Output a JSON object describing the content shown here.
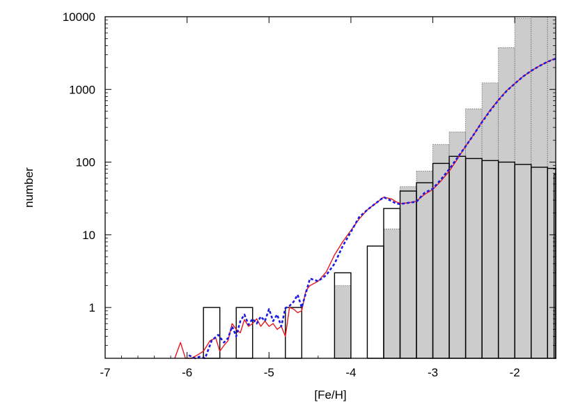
{
  "chart_data": {
    "type": "bar",
    "xlabel": "[Fe/H]",
    "ylabel": "number",
    "xlim": [
      -7,
      -1.5
    ],
    "ylim": [
      0.2,
      10000
    ],
    "y_scale": "log",
    "grid": false,
    "x_ticks": [
      -7,
      -6,
      -5,
      -4,
      -3,
      -2
    ],
    "x_tick_labels": [
      "-7",
      "-6",
      "-5",
      "-4",
      "-3",
      "-2"
    ],
    "y_ticks": [
      1,
      10,
      100,
      1000,
      10000
    ],
    "y_tick_labels": [
      "1",
      "10",
      "100",
      "1000",
      "10000"
    ],
    "gray_histogram": {
      "bin_width": 0.2,
      "color": "#cccccc",
      "bins": [
        {
          "x0": -4.2,
          "value": 2
        },
        {
          "x0": -3.6,
          "value": 12
        },
        {
          "x0": -3.4,
          "value": 46
        },
        {
          "x0": -3.2,
          "value": 75
        },
        {
          "x0": -3.0,
          "value": 175
        },
        {
          "x0": -2.8,
          "value": 260
        },
        {
          "x0": -2.6,
          "value": 540
        },
        {
          "x0": -2.4,
          "value": 1230
        },
        {
          "x0": -2.2,
          "value": 3750
        },
        {
          "x0": -2.0,
          "value": 9500
        },
        {
          "x0": -1.8,
          "value": 10000
        },
        {
          "x0": -1.6,
          "value": 10000
        }
      ]
    },
    "black_histogram": {
      "bin_width": 0.2,
      "color": "#000000",
      "bins": [
        {
          "x0": -5.8,
          "value": 1
        },
        {
          "x0": -5.4,
          "value": 1
        },
        {
          "x0": -4.8,
          "value": 1
        },
        {
          "x0": -4.2,
          "value": 3
        },
        {
          "x0": -3.8,
          "value": 7
        },
        {
          "x0": -3.6,
          "value": 23
        },
        {
          "x0": -3.4,
          "value": 40
        },
        {
          "x0": -3.2,
          "value": 52
        },
        {
          "x0": -3.0,
          "value": 96
        },
        {
          "x0": -2.8,
          "value": 120
        },
        {
          "x0": -2.6,
          "value": 112
        },
        {
          "x0": -2.4,
          "value": 105
        },
        {
          "x0": -2.2,
          "value": 100
        },
        {
          "x0": -2.0,
          "value": 93
        },
        {
          "x0": -1.8,
          "value": 85
        },
        {
          "x0": -1.6,
          "value": 82
        },
        {
          "x0": -1.52,
          "value": 68
        }
      ]
    },
    "series": [
      {
        "color": "#e8161b",
        "style": "solid",
        "x": [
          -6.15,
          -6.08,
          -6.02,
          -5.95,
          -5.88,
          -5.8,
          -5.72,
          -5.65,
          -5.6,
          -5.55,
          -5.5,
          -5.45,
          -5.4,
          -5.35,
          -5.3,
          -5.25,
          -5.2,
          -5.15,
          -5.1,
          -5.05,
          -5.0,
          -4.95,
          -4.9,
          -4.85,
          -4.8,
          -4.75,
          -4.7,
          -4.65,
          -4.6,
          -4.55,
          -4.5,
          -4.4,
          -4.3,
          -4.2,
          -4.1,
          -4.0,
          -3.9,
          -3.8,
          -3.7,
          -3.6,
          -3.5,
          -3.45,
          -3.4,
          -3.3,
          -3.2,
          -3.1,
          -3.0,
          -2.9,
          -2.8,
          -2.7,
          -2.6,
          -2.5,
          -2.4,
          -2.3,
          -2.2,
          -2.1,
          -2.0,
          -1.9,
          -1.8,
          -1.7,
          -1.6,
          -1.5
        ],
        "y": [
          0.2,
          0.33,
          0.2,
          0.2,
          0.22,
          0.25,
          0.35,
          0.38,
          0.25,
          0.3,
          0.35,
          0.6,
          0.5,
          0.45,
          0.68,
          0.55,
          0.6,
          0.7,
          0.55,
          0.65,
          0.55,
          0.6,
          0.5,
          0.55,
          0.4,
          1.0,
          0.95,
          0.85,
          0.9,
          1.7,
          2.0,
          2.3,
          3.1,
          5.3,
          8.0,
          11.5,
          16.5,
          22.0,
          27.0,
          33.0,
          31.0,
          28.5,
          27.0,
          27.5,
          29.0,
          36.0,
          42.0,
          55.0,
          75.0,
          110.0,
          165.0,
          240.0,
          360.0,
          520.0,
          720.0,
          960.0,
          1200.0,
          1500.0,
          1800.0,
          2100.0,
          2400.0,
          2700.0
        ]
      },
      {
        "color": "#1a1ae8",
        "style": "dashed",
        "x": [
          -5.98,
          -5.9,
          -5.85,
          -5.78,
          -5.7,
          -5.62,
          -5.55,
          -5.5,
          -5.45,
          -5.4,
          -5.35,
          -5.3,
          -5.25,
          -5.2,
          -5.15,
          -5.1,
          -5.05,
          -5.0,
          -4.95,
          -4.9,
          -4.85,
          -4.8,
          -4.75,
          -4.7,
          -4.65,
          -4.6,
          -4.5,
          -4.4,
          -4.3,
          -4.2,
          -4.1,
          -4.0,
          -3.9,
          -3.8,
          -3.7,
          -3.6,
          -3.5,
          -3.45,
          -3.4,
          -3.3,
          -3.2,
          -3.1,
          -3.0,
          -2.9,
          -2.8,
          -2.7,
          -2.6,
          -2.5,
          -2.4,
          -2.3,
          -2.2,
          -2.1,
          -2.0,
          -1.9,
          -1.8,
          -1.7,
          -1.6,
          -1.5
        ],
        "y": [
          0.22,
          0.2,
          0.21,
          0.2,
          0.35,
          0.42,
          0.33,
          0.38,
          0.55,
          0.4,
          0.65,
          0.8,
          0.58,
          0.7,
          0.6,
          0.75,
          0.65,
          0.95,
          0.65,
          0.8,
          0.55,
          0.98,
          1.05,
          1.2,
          1.5,
          1.0,
          2.5,
          2.3,
          2.8,
          4.0,
          7.0,
          11.0,
          17.5,
          22.0,
          27.0,
          33.0,
          29.0,
          27.0,
          26.5,
          27.5,
          28.5,
          38.0,
          43.0,
          58.0,
          80.0,
          115.0,
          165.0,
          240.0,
          355.0,
          510.0,
          710.0,
          950.0,
          1200.0,
          1500.0,
          1800.0,
          2100.0,
          2400.0,
          2650.0
        ]
      }
    ]
  }
}
